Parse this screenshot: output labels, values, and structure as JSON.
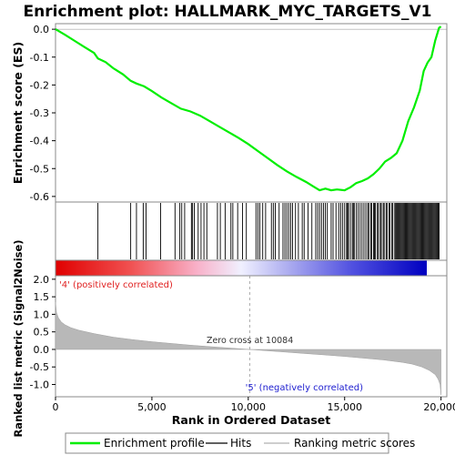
{
  "title": "Enrichment plot: HALLMARK_MYC_TARGETS_V1",
  "chart_data": {
    "type": "line",
    "rank_axis": {
      "label": "Rank in Ordered Dataset",
      "range": [
        0,
        20300
      ],
      "ticks": [
        0,
        5000,
        10000,
        15000,
        20000
      ],
      "tick_labels": [
        "0",
        "5,000",
        "10,000",
        "15,000",
        "20,000"
      ]
    },
    "enrichment": {
      "ylabel": "Enrichment score (ES)",
      "ylim": [
        -0.62,
        0.02
      ],
      "ticks": [
        0.0,
        -0.1,
        -0.2,
        -0.3,
        -0.4,
        -0.5,
        -0.6
      ],
      "tick_labels": [
        "0.0",
        "-0.1",
        "-0.2",
        "-0.3",
        "-0.4",
        "-0.5",
        "-0.6"
      ],
      "series_name": "Enrichment profile",
      "color": "#00ee00",
      "x": [
        0,
        500,
        1000,
        1500,
        2000,
        2200,
        2600,
        3000,
        3500,
        3900,
        4200,
        4600,
        5000,
        5500,
        6000,
        6500,
        7000,
        7500,
        8000,
        8500,
        9000,
        9500,
        10000,
        10500,
        11000,
        11500,
        12000,
        12500,
        13000,
        13400,
        13700,
        14000,
        14300,
        14600,
        15000,
        15300,
        15600,
        15900,
        16200,
        16500,
        16800,
        17100,
        17400,
        17700,
        18000,
        18300,
        18600,
        18900,
        19100,
        19300,
        19500,
        19700,
        19900,
        20000
      ],
      "y": [
        0.0,
        -0.02,
        -0.042,
        -0.064,
        -0.085,
        -0.105,
        -0.118,
        -0.14,
        -0.162,
        -0.185,
        -0.195,
        -0.205,
        -0.222,
        -0.245,
        -0.265,
        -0.285,
        -0.295,
        -0.31,
        -0.33,
        -0.35,
        -0.37,
        -0.39,
        -0.412,
        -0.437,
        -0.462,
        -0.487,
        -0.51,
        -0.53,
        -0.548,
        -0.565,
        -0.578,
        -0.572,
        -0.578,
        -0.575,
        -0.578,
        -0.567,
        -0.552,
        -0.545,
        -0.535,
        -0.52,
        -0.5,
        -0.475,
        -0.462,
        -0.445,
        -0.4,
        -0.33,
        -0.28,
        -0.22,
        -0.15,
        -0.12,
        -0.1,
        -0.04,
        0.005,
        0.01
      ]
    },
    "hits": {
      "series_name": "Hits",
      "positions": [
        2200,
        3900,
        4200,
        4550,
        4700,
        5450,
        6200,
        6450,
        6550,
        6700,
        7050,
        7100,
        7200,
        7400,
        7550,
        7700,
        7850,
        8400,
        8550,
        8800,
        9100,
        9200,
        9450,
        9700,
        9900,
        10400,
        10500,
        10600,
        10750,
        10900,
        11200,
        11300,
        11400,
        11600,
        11800,
        11900,
        12000,
        12100,
        12200,
        12300,
        12450,
        12600,
        12800,
        12900,
        13100,
        13300,
        13500,
        13600,
        13700,
        13800,
        13900,
        14000,
        14100,
        14300,
        14400,
        14550,
        14700,
        14800,
        14900,
        15000,
        15100,
        15150,
        15200,
        15300,
        15400,
        15450,
        15500,
        15600,
        15700,
        15800,
        15900,
        16000,
        16100,
        16200,
        16250,
        16350,
        16400,
        16500,
        16550,
        16600,
        16700,
        16750,
        16850,
        16900,
        17000,
        17050,
        17150,
        17200,
        17300,
        17350,
        17450,
        17500,
        17600,
        17650,
        17700,
        17750,
        17800,
        17850,
        17900,
        17950,
        18000,
        18050,
        18100,
        18150,
        18200,
        18250,
        18300,
        18350,
        18400,
        18450,
        18500,
        18550,
        18600,
        18650,
        18700,
        18750,
        18800,
        18850,
        18900,
        18950,
        19000,
        19050,
        19100,
        19150,
        19200,
        19250,
        19300,
        19350,
        19400,
        19450,
        19500,
        19550,
        19600,
        19650,
        19700,
        19750,
        19800,
        19850,
        19900
      ]
    },
    "ranked_metric": {
      "ylabel": "Ranked list metric (Signal2Noise)",
      "ylim": [
        -1.35,
        2.1
      ],
      "ticks": [
        2.0,
        1.5,
        1.0,
        0.5,
        0.0,
        -0.5,
        -1.0
      ],
      "tick_labels": [
        "2.0",
        "1.5",
        "1.0",
        "0.5",
        "0.0",
        "-0.5",
        "-1.0"
      ],
      "series_name": "Ranking metric scores",
      "x": [
        0,
        50,
        150,
        300,
        500,
        800,
        1200,
        2000,
        3000,
        4000,
        5000,
        6000,
        7000,
        8000,
        9000,
        10084,
        11000,
        12000,
        13000,
        14000,
        15000,
        16000,
        17000,
        18000,
        18500,
        19000,
        19400,
        19700,
        19850,
        19950,
        20000
      ],
      "y": [
        1.35,
        1.05,
        0.9,
        0.78,
        0.7,
        0.62,
        0.55,
        0.45,
        0.35,
        0.28,
        0.22,
        0.17,
        0.12,
        0.08,
        0.04,
        0.0,
        -0.04,
        -0.08,
        -0.12,
        -0.16,
        -0.2,
        -0.25,
        -0.3,
        -0.37,
        -0.42,
        -0.5,
        -0.6,
        -0.72,
        -0.85,
        -1.0,
        -1.3
      ]
    },
    "zero_cross_text": "Zero cross at 10084",
    "zero_cross_rank": 10084,
    "positive_label": "'4' (positively correlated)",
    "negative_label": "'5' (negatively correlated)",
    "legend": {
      "items": [
        {
          "label": "Enrichment profile",
          "color": "#00ee00"
        },
        {
          "label": "Hits",
          "color": "#000000"
        },
        {
          "label": "Ranking metric scores",
          "color": "#b0b0b0"
        }
      ]
    }
  }
}
